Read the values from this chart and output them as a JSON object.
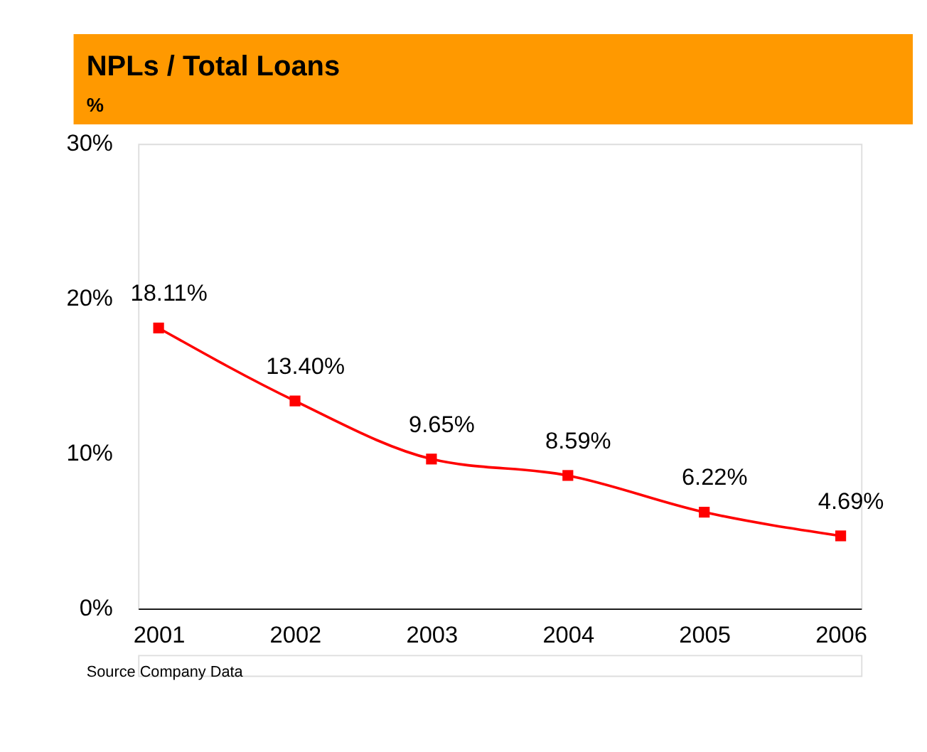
{
  "chart_data": {
    "type": "line",
    "title": "NPLs / Total Loans",
    "subtitle": "%",
    "categories": [
      "2001",
      "2002",
      "2003",
      "2004",
      "2005",
      "2006"
    ],
    "series": [
      {
        "color": "#ff0000",
        "values": [
          18.11,
          13.4,
          9.65,
          8.59,
          6.22,
          4.69
        ],
        "value_labels": [
          "18.11%",
          "13.40%",
          "9.65%",
          "8.59%",
          "6.22%",
          "4.69%"
        ]
      }
    ],
    "ylim": [
      0,
      30
    ],
    "yticks": [
      {
        "value": 0,
        "label": "0%"
      },
      {
        "value": 10,
        "label": "10%"
      },
      {
        "value": 20,
        "label": "20%"
      },
      {
        "value": 30,
        "label": "30%"
      }
    ],
    "grid": false,
    "marker": "square",
    "line_style": "solid",
    "annotations": [
      "Source Company Data"
    ]
  }
}
